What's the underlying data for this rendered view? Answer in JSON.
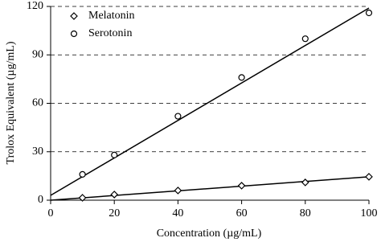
{
  "chart_data": {
    "type": "scatter",
    "x_label": "Concentration (µg/mL)",
    "y_label": "Trolox Equivalent (µg/mL)",
    "xlim": [
      0,
      100
    ],
    "xticks": [
      0,
      20,
      40,
      60,
      80,
      100
    ],
    "ylim": [
      0,
      120
    ],
    "yticks": [
      0,
      30,
      60,
      90,
      120
    ],
    "grid": true,
    "legend": "upper-left",
    "series": [
      {
        "name": "Melatonin",
        "color": "#000000",
        "marker": "diamond",
        "x": [
          10,
          20,
          40,
          60,
          80,
          100
        ],
        "values": [
          1.5,
          3.5,
          6,
          9,
          11,
          14.5
        ],
        "trendline": {
          "x": [
            0,
            100
          ],
          "values": [
            0,
            14.5
          ]
        }
      },
      {
        "name": "Serotonin",
        "color": "#000000",
        "marker": "circle",
        "x": [
          10,
          20,
          40,
          60,
          80,
          100
        ],
        "values": [
          16,
          28,
          52,
          76,
          100,
          116
        ],
        "trendline": {
          "x": [
            0,
            100
          ],
          "values": [
            3,
            119
          ]
        }
      }
    ]
  }
}
